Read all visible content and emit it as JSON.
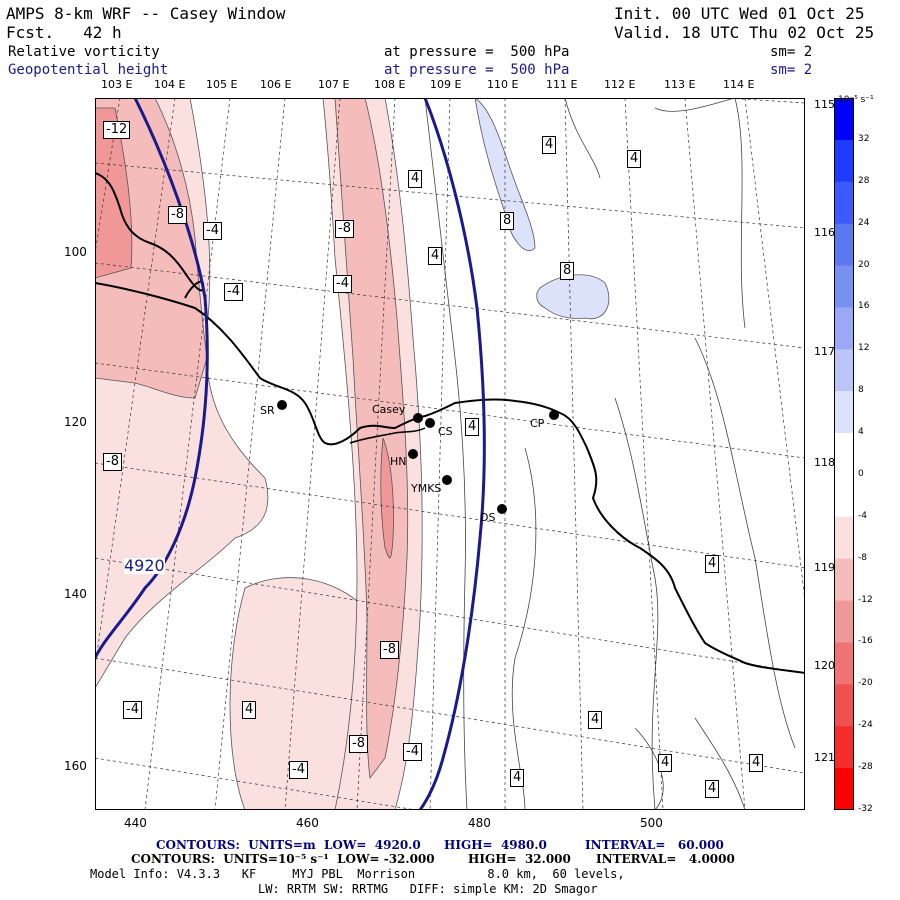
{
  "header": {
    "title": "AMPS 8-km WRF -- Casey Window",
    "forecast": "Fcst.   42 h",
    "init": "Init. 00 UTC Wed 01 Oct 25",
    "valid": "Valid. 18 UTC Thu 02 Oct 25",
    "field1_name": "Relative vorticity",
    "field1_level": "at pressure =  500 hPa",
    "field1_smooth": "sm= 2",
    "field2_name": "Geopotential height",
    "field2_level": "at pressure =  500 hPa",
    "field2_smooth": "sm= 2"
  },
  "longitudes_top": [
    "103 E",
    "104 E",
    "105 E",
    "106 E",
    "107 E",
    "108 E",
    "109 E",
    "110 E",
    "111 E",
    "112 E",
    "113 E",
    "114 E"
  ],
  "longitudes_right": [
    "115 E",
    "116 E",
    "117 E",
    "118 E",
    "119 E",
    "120 E",
    "121 E"
  ],
  "y_ticks": [
    "100",
    "120",
    "140",
    "160"
  ],
  "x_ticks": [
    "440",
    "460",
    "480",
    "500"
  ],
  "colorbar": {
    "unit_label": "10⁻⁵ s⁻¹",
    "tick_labels": [
      "32",
      "28",
      "24",
      "20",
      "16",
      "12",
      "8",
      "4",
      "0",
      "-4",
      "-8",
      "-12",
      "-16",
      "-20",
      "-24",
      "-28",
      "-32"
    ],
    "colors": [
      "#0000ff",
      "#1e3cff",
      "#3c5aff",
      "#5a78f0",
      "#7890f0",
      "#9aa8f5",
      "#bcc5f8",
      "#dde2fb",
      "#ffffff",
      "#ffffff",
      "#fbe0e0",
      "#f5bcbc",
      "#f09898",
      "#f07474",
      "#f05050",
      "#f52c2c",
      "#ff0000"
    ]
  },
  "stations": [
    {
      "code": "SR"
    },
    {
      "code": "Casey"
    },
    {
      "code": "CS"
    },
    {
      "code": "CP"
    },
    {
      "code": "HN"
    },
    {
      "code": "YMKS"
    },
    {
      "code": "DS"
    }
  ],
  "contour_labels": {
    "height": "4920",
    "vorticity": [
      "-12",
      "-8",
      "-4",
      "-8",
      "-4",
      "-4",
      "4",
      "4",
      "8",
      "8",
      "4",
      "4",
      "-8",
      "4",
      "-4",
      "4",
      "-4",
      "-8",
      "-8",
      "-4",
      "-4",
      "4",
      "4",
      "4",
      "4",
      "4",
      "4"
    ]
  },
  "footer": {
    "line1_a": "CONTOURS:  UNITS=m  LOW=  4920.0",
    "line1_b": "HIGH=  4980.0",
    "line1_c": "INTERVAL=   60.000",
    "line2_a": "CONTOURS:  UNITS=10⁻⁵ s⁻¹  LOW= -32.000",
    "line2_b": "HIGH=  32.000",
    "line2_c": "INTERVAL=   4.0000",
    "line3": "Model Info: V4.3.3   KF     MYJ PBL  Morrison          8.0 km,  60 levels,",
    "line4": "LW: RRTM SW: RRTMG   DIFF: simple KM: 2D Smagor"
  }
}
